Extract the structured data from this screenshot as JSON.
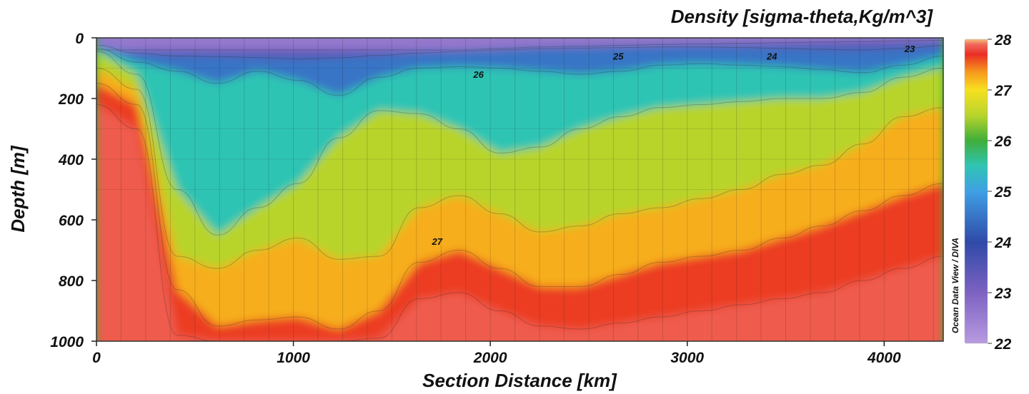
{
  "chart_data": {
    "type": "heatmap",
    "title": "Density [sigma-theta,Kg/m^3]",
    "xlabel": "Section Distance [km]",
    "ylabel": "Depth [m]",
    "xlim": [
      0,
      4300
    ],
    "ylim": [
      1000,
      0
    ],
    "x_ticks": [
      0,
      1000,
      2000,
      3000,
      4000
    ],
    "y_ticks": [
      0,
      200,
      400,
      600,
      800,
      1000
    ],
    "colorbar": {
      "min": 22,
      "max": 28,
      "ticks": [
        22,
        23,
        24,
        25,
        26,
        27,
        28
      ],
      "label": "Ocean Data View / DIVA",
      "stops": [
        {
          "value": 22,
          "color": "#b89ae0"
        },
        {
          "value": 23,
          "color": "#7d62c2"
        },
        {
          "value": 24,
          "color": "#2f4aa8"
        },
        {
          "value": 25,
          "color": "#3fa0e4"
        },
        {
          "value": 25.5,
          "color": "#2fc4b4"
        },
        {
          "value": 26,
          "color": "#3fae3a"
        },
        {
          "value": 26.5,
          "color": "#b8d42c"
        },
        {
          "value": 27,
          "color": "#f7e021"
        },
        {
          "value": 27.35,
          "color": "#f79a1c"
        },
        {
          "value": 27.7,
          "color": "#ea2d24"
        },
        {
          "value": 27.9,
          "color": "#f06a5c"
        },
        {
          "value": 28,
          "color": "#f5c07a"
        }
      ]
    },
    "isopycnals": [
      {
        "value": 23,
        "depth": [
          40,
          40,
          40,
          40,
          40,
          40,
          40,
          40,
          40,
          40,
          35,
          30,
          28,
          25,
          22,
          20,
          18,
          16,
          14,
          12,
          10,
          8
        ]
      },
      {
        "value": 24,
        "depth": [
          25,
          50,
          60,
          62,
          65,
          70,
          66,
          58,
          50,
          45,
          40,
          36,
          34,
          32,
          30,
          30,
          32,
          35,
          38,
          40,
          35,
          25
        ]
      },
      {
        "value": 25,
        "depth": [
          35,
          80,
          110,
          150,
          110,
          140,
          190,
          130,
          100,
          95,
          100,
          110,
          120,
          110,
          90,
          85,
          90,
          95,
          105,
          115,
          90,
          60
        ]
      },
      {
        "value": 26,
        "depth": [
          45,
          120,
          500,
          650,
          560,
          480,
          330,
          240,
          250,
          300,
          380,
          360,
          300,
          260,
          230,
          220,
          210,
          200,
          200,
          180,
          130,
          100
        ]
      },
      {
        "value": 27,
        "depth": [
          100,
          170,
          720,
          760,
          700,
          660,
          730,
          720,
          560,
          520,
          580,
          640,
          620,
          580,
          560,
          530,
          500,
          450,
          420,
          350,
          260,
          230
        ]
      },
      {
        "value": 27.5,
        "depth": [
          150,
          220,
          830,
          950,
          930,
          920,
          960,
          900,
          740,
          700,
          760,
          820,
          820,
          780,
          740,
          720,
          700,
          660,
          620,
          570,
          520,
          480
        ]
      },
      {
        "value": 27.8,
        "depth": [
          220,
          300,
          980,
          1000,
          1000,
          1000,
          1000,
          990,
          860,
          840,
          900,
          950,
          960,
          940,
          920,
          900,
          880,
          860,
          840,
          800,
          760,
          720
        ]
      }
    ],
    "contour_labels": [
      {
        "text": "23",
        "x": 4130,
        "depth": 35
      },
      {
        "text": "24",
        "x": 3430,
        "depth": 60
      },
      {
        "text": "25",
        "x": 2650,
        "depth": 60
      },
      {
        "text": "26",
        "x": 1940,
        "depth": 120
      },
      {
        "text": "27",
        "x": 1730,
        "depth": 670
      }
    ]
  }
}
